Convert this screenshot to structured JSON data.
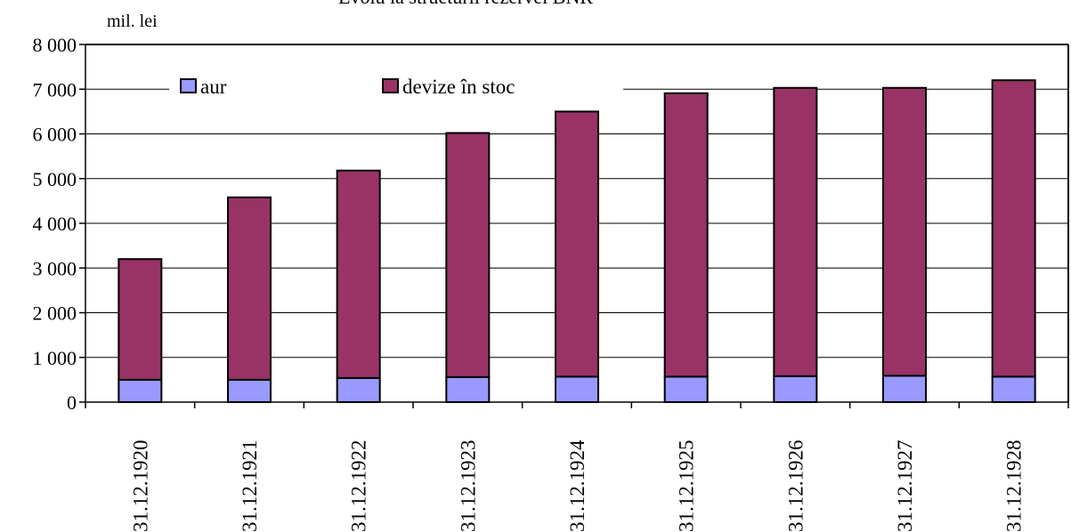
{
  "chart_data": {
    "type": "bar",
    "stacked": true,
    "title": "",
    "xlabel": "",
    "ylabel": "",
    "unit_label": "mil. lei",
    "categories": [
      "31.12.1920",
      "31.12.1921",
      "31.12.1922",
      "31.12.1923",
      "31.12.1924",
      "31.12.1925",
      "31.12.1926",
      "31.12.1927",
      "31.12.1928"
    ],
    "series": [
      {
        "name": "aur",
        "color": "#9999ff",
        "values": [
          500,
          500,
          540,
          560,
          570,
          570,
          580,
          590,
          570
        ]
      },
      {
        "name": "devize în stoc",
        "color": "#993366",
        "values": [
          2700,
          4080,
          4640,
          5460,
          5930,
          6340,
          6450,
          6440,
          6630
        ]
      }
    ],
    "ylim": [
      0,
      8000
    ],
    "yticks": [
      0,
      1000,
      2000,
      3000,
      4000,
      5000,
      6000,
      7000,
      8000
    ],
    "ytick_labels": [
      "0",
      "1 000",
      "2 000",
      "3 000",
      "4 000",
      "5 000",
      "6 000",
      "7 000",
      "8 000"
    ],
    "grid": true,
    "legend": {
      "position": "top-left",
      "entries": [
        "aur",
        "devize în stoc"
      ]
    },
    "bar_edge_color": "#000000"
  }
}
